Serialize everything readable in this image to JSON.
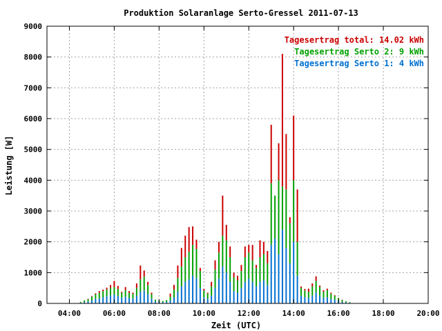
{
  "chart_data": {
    "type": "bar",
    "title": "Produktion Solaranlage Serto-Gressel 2011-07-13",
    "xlabel": "Zeit (UTC)",
    "ylabel": "Leistung [W]",
    "xlim": [
      "03:00",
      "20:00"
    ],
    "ylim": [
      0,
      9000
    ],
    "x_ticks": [
      "04:00",
      "06:00",
      "08:00",
      "10:00",
      "12:00",
      "14:00",
      "16:00",
      "18:00",
      "20:00"
    ],
    "y_ticks": [
      0,
      1000,
      2000,
      3000,
      4000,
      5000,
      6000,
      7000,
      8000,
      9000
    ],
    "grid": true,
    "legend_position": "top-right",
    "legend": [
      {
        "label": "Tagesertrag total: 14.02 kWh",
        "color": "#cc0000"
      },
      {
        "label": "Tagesertrag Serto 2: 9 kWh",
        "color": "#00a000"
      },
      {
        "label": "Tagesertrag Serto 1: 4 kWh",
        "color": "#0070d0"
      }
    ],
    "stacking": "stacked",
    "series_order_bottom_to_top": [
      "Serto 1",
      "Serto 2",
      "Rest (total)"
    ],
    "x": [
      "04:30",
      "04:40",
      "04:50",
      "05:00",
      "05:10",
      "05:20",
      "05:30",
      "05:40",
      "05:50",
      "06:00",
      "06:10",
      "06:20",
      "06:30",
      "06:40",
      "06:50",
      "07:00",
      "07:10",
      "07:20",
      "07:30",
      "07:40",
      "07:50",
      "08:00",
      "08:10",
      "08:20",
      "08:30",
      "08:40",
      "08:50",
      "09:00",
      "09:10",
      "09:20",
      "09:30",
      "09:40",
      "09:50",
      "10:00",
      "10:10",
      "10:20",
      "10:30",
      "10:40",
      "10:50",
      "11:00",
      "11:10",
      "11:20",
      "11:30",
      "11:40",
      "11:50",
      "12:00",
      "12:10",
      "12:20",
      "12:30",
      "12:40",
      "12:50",
      "13:00",
      "13:10",
      "13:20",
      "13:30",
      "13:40",
      "13:50",
      "14:00",
      "14:10",
      "14:20",
      "14:30",
      "14:40",
      "14:50",
      "15:00",
      "15:10",
      "15:20",
      "15:30",
      "15:40",
      "15:50",
      "16:00",
      "16:10",
      "16:20",
      "16:30"
    ],
    "series": [
      {
        "values": [
          20,
          40,
          60,
          100,
          150,
          160,
          200,
          230,
          260,
          280,
          240,
          180,
          220,
          180,
          160,
          250,
          380,
          420,
          300,
          150,
          60,
          50,
          40,
          50,
          100,
          200,
          380,
          550,
          700,
          780,
          900,
          820,
          500,
          200,
          150,
          250,
          500,
          800,
          1200,
          1000,
          700,
          400,
          350,
          500,
          700,
          800,
          700,
          550,
          700,
          750,
          600,
          1900,
          2100,
          1600,
          2400,
          1800,
          1300,
          2000,
          900,
          250,
          200,
          180,
          250,
          350,
          250,
          180,
          200,
          150,
          120,
          80,
          50,
          30,
          20
        ]
      },
      {
        "values": [
          30,
          60,
          80,
          120,
          150,
          180,
          200,
          220,
          240,
          250,
          230,
          170,
          210,
          160,
          150,
          250,
          400,
          450,
          300,
          150,
          60,
          50,
          40,
          60,
          120,
          250,
          450,
          650,
          800,
          900,
          1000,
          950,
          550,
          220,
          170,
          300,
          600,
          850,
          1000,
          1050,
          800,
          450,
          400,
          550,
          800,
          850,
          700,
          600,
          800,
          850,
          700,
          2000,
          1400,
          2400,
          1400,
          1900,
          1300,
          2000,
          1100,
          250,
          220,
          200,
          300,
          380,
          280,
          200,
          230,
          170,
          130,
          90,
          60,
          40,
          20
        ]
      },
      {
        "values": [
          0,
          0,
          10,
          20,
          30,
          60,
          50,
          60,
          100,
          200,
          100,
          30,
          100,
          60,
          40,
          150,
          450,
          200,
          100,
          50,
          0,
          0,
          0,
          0,
          100,
          150,
          400,
          600,
          700,
          800,
          600,
          300,
          100,
          50,
          30,
          150,
          300,
          350,
          1300,
          500,
          350,
          150,
          150,
          200,
          350,
          250,
          500,
          100,
          550,
          400,
          400,
          1900,
          0,
          1200,
          4300,
          1800,
          200,
          2100,
          1700,
          50,
          50,
          100,
          100,
          150,
          50,
          50,
          50,
          30,
          20,
          10,
          10,
          0,
          0
        ]
      }
    ]
  }
}
